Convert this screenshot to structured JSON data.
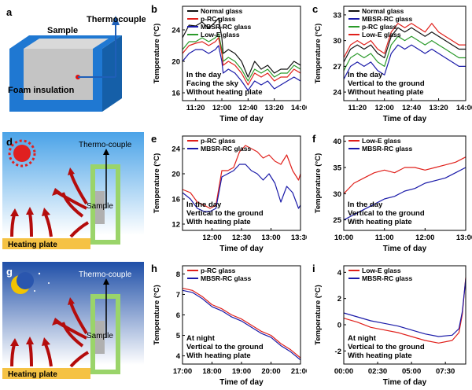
{
  "figure": {
    "panel_letters": {
      "a": "a",
      "b": "b",
      "c": "c",
      "d": "d",
      "e": "e",
      "f": "f",
      "g": "g",
      "h": "h",
      "i": "i"
    },
    "schematic_a": {
      "sample": "Sample",
      "thermocouple": "Thermocouple",
      "foam": "Foam insulation"
    },
    "schematic_d": {
      "thermo": "Thermo-couple",
      "sample": "Sample",
      "heating": "Heating plate"
    },
    "schematic_g": {
      "thermo": "Thermo-couple",
      "sample": "Sample",
      "heating": "Heating plate"
    }
  },
  "colors": {
    "normal": "#111111",
    "prc": "#e0201b",
    "mbsr": "#1a1aa8",
    "lowe": "#2a9a2a",
    "sky_top": "#4aa3e8",
    "sky_bottom": "#ffffff",
    "night_top": "#1f4fa8",
    "arrow": "#b40c0c",
    "foam": "#1f78d2",
    "plate": "#f5c244"
  },
  "chart_data": [
    {
      "id": "b",
      "type": "line",
      "xlabel": "Time of day",
      "ylabel": "Temperature (°C)",
      "xlim": [
        0,
        180
      ],
      "ylim": [
        15,
        27
      ],
      "xticks": [
        {
          "v": 20,
          "t": "11:20"
        },
        {
          "v": 60,
          "t": "12:00"
        },
        {
          "v": 100,
          "t": "12:40"
        },
        {
          "v": 140,
          "t": "13:20"
        },
        {
          "v": 180,
          "t": "14:00"
        }
      ],
      "yticks": [
        {
          "v": 16,
          "t": "16"
        },
        {
          "v": 20,
          "t": "20"
        },
        {
          "v": 24,
          "t": "24"
        }
      ],
      "legend": [
        "Normal glass",
        "p-RC glass",
        "MBSR-RC glass",
        "Low-E glass"
      ],
      "annotation": [
        "In the day",
        "Facing the sky",
        "Without heating plate"
      ],
      "series": [
        {
          "name": "Normal glass",
          "color": "normal",
          "x": [
            0,
            10,
            20,
            30,
            40,
            50,
            55,
            60,
            62,
            70,
            80,
            90,
            100,
            110,
            120,
            130,
            140,
            150,
            160,
            170,
            180
          ],
          "y": [
            23,
            24.6,
            24.5,
            25,
            24.2,
            25,
            25.5,
            23,
            21,
            21.5,
            21,
            20,
            18,
            20,
            19,
            19.5,
            18.5,
            19,
            19,
            20,
            19.5
          ]
        },
        {
          "name": "Low-E glass",
          "color": "lowe",
          "x": [
            0,
            10,
            20,
            30,
            40,
            50,
            55,
            60,
            62,
            70,
            80,
            90,
            100,
            110,
            120,
            130,
            140,
            150,
            160,
            170,
            180
          ],
          "y": [
            21.5,
            22.5,
            22.5,
            23,
            22.5,
            23,
            23.5,
            21.5,
            20,
            20.5,
            20,
            19,
            17.5,
            19,
            18.5,
            19,
            18,
            18.5,
            18.5,
            19.5,
            19
          ]
        },
        {
          "name": "p-RC glass",
          "color": "prc",
          "x": [
            0,
            10,
            20,
            30,
            40,
            50,
            55,
            60,
            62,
            70,
            80,
            90,
            100,
            110,
            120,
            130,
            140,
            150,
            160,
            170,
            180
          ],
          "y": [
            21,
            22,
            22.3,
            22.5,
            22,
            22.5,
            23,
            21,
            19.5,
            20,
            19.5,
            18.5,
            17,
            18.5,
            18,
            18.5,
            17.5,
            18,
            18,
            19,
            18.5
          ]
        },
        {
          "name": "MBSR-RC glass",
          "color": "mbsr",
          "x": [
            0,
            10,
            20,
            30,
            40,
            50,
            55,
            60,
            62,
            70,
            80,
            90,
            100,
            110,
            120,
            130,
            140,
            150,
            160,
            170,
            180
          ],
          "y": [
            20,
            21,
            21.5,
            21.5,
            21,
            21.5,
            22,
            20,
            18.5,
            19,
            18.5,
            17.5,
            16.3,
            17.5,
            17,
            17.5,
            16.5,
            17,
            17.5,
            18,
            17.5
          ]
        }
      ]
    },
    {
      "id": "c",
      "type": "line",
      "xlabel": "Time of day",
      "ylabel": "Temperature (°C)",
      "xlim": [
        0,
        180
      ],
      "ylim": [
        23,
        34
      ],
      "xticks": [
        {
          "v": 20,
          "t": "11:20"
        },
        {
          "v": 60,
          "t": "12:00"
        },
        {
          "v": 100,
          "t": "12:40"
        },
        {
          "v": 140,
          "t": "13:20"
        },
        {
          "v": 180,
          "t": "14:00"
        }
      ],
      "yticks": [
        {
          "v": 24,
          "t": "24"
        },
        {
          "v": 27,
          "t": "27"
        },
        {
          "v": 30,
          "t": "30"
        },
        {
          "v": 33,
          "t": "33"
        }
      ],
      "legend": [
        "Normal glass",
        "MBSR-RC glass",
        "p-RC glass",
        "Low-E glass"
      ],
      "annotation": [
        "In the day",
        "Vertical to the ground",
        "Without heating plate"
      ],
      "series": [
        {
          "name": "Low-E glass",
          "color": "prc",
          "x": [
            0,
            10,
            20,
            30,
            40,
            50,
            60,
            70,
            80,
            90,
            100,
            110,
            120,
            130,
            140,
            150,
            160,
            170,
            180
          ],
          "y": [
            28,
            29.5,
            30,
            29.5,
            30,
            29,
            28.5,
            31,
            32,
            31.5,
            32,
            31.5,
            31,
            32,
            31,
            30.5,
            30,
            29.5,
            29.5
          ]
        },
        {
          "name": "Normal glass",
          "color": "normal",
          "x": [
            0,
            10,
            20,
            30,
            40,
            50,
            60,
            70,
            80,
            90,
            100,
            110,
            120,
            130,
            140,
            150,
            160,
            170,
            180
          ],
          "y": [
            27.5,
            29,
            29.5,
            29,
            29.5,
            28.5,
            28,
            30.5,
            31.5,
            31,
            31.5,
            31,
            30.5,
            31,
            30.5,
            30,
            29.5,
            29,
            29
          ]
        },
        {
          "name": "p-RC glass",
          "color": "lowe",
          "x": [
            0,
            10,
            20,
            30,
            40,
            50,
            60,
            70,
            80,
            90,
            100,
            110,
            120,
            130,
            140,
            150,
            160,
            170,
            180
          ],
          "y": [
            26.5,
            28,
            28.5,
            28,
            28.5,
            27.5,
            27,
            29.5,
            30.5,
            30,
            30.5,
            30,
            29.5,
            30,
            29.5,
            29,
            28.5,
            28,
            28
          ]
        },
        {
          "name": "MBSR-RC glass",
          "color": "mbsr",
          "x": [
            0,
            10,
            20,
            30,
            40,
            50,
            60,
            70,
            80,
            90,
            100,
            110,
            120,
            130,
            140,
            150,
            160,
            170,
            180
          ],
          "y": [
            25.5,
            27,
            27.5,
            27,
            27.5,
            26.5,
            26,
            28.5,
            29.5,
            29,
            29.5,
            29,
            28.5,
            29,
            28.5,
            28,
            27.5,
            27,
            27
          ]
        }
      ]
    },
    {
      "id": "e",
      "type": "line",
      "xlabel": "Time of day",
      "ylabel": "Temperature (°C)",
      "xlim": [
        0,
        120
      ],
      "ylim": [
        11,
        26
      ],
      "xticks": [
        {
          "v": 30,
          "t": "12:00"
        },
        {
          "v": 60,
          "t": "12:30"
        },
        {
          "v": 90,
          "t": "13:00"
        },
        {
          "v": 120,
          "t": "13:30"
        }
      ],
      "yticks": [
        {
          "v": 12,
          "t": "12"
        },
        {
          "v": 16,
          "t": "16"
        },
        {
          "v": 20,
          "t": "20"
        },
        {
          "v": 24,
          "t": "24"
        }
      ],
      "legend": [
        "p-RC glass",
        "MBSR-RC glass"
      ],
      "annotation": [
        "In the day",
        "Vertical to the ground",
        "With heating plate"
      ],
      "series": [
        {
          "name": "p-RC glass",
          "color": "prc",
          "x": [
            0,
            8,
            15,
            22,
            28,
            34,
            40,
            46,
            52,
            58,
            64,
            70,
            76,
            82,
            88,
            94,
            100,
            106,
            112,
            118,
            120
          ],
          "y": [
            17.5,
            17,
            15.5,
            15,
            14.5,
            15,
            20.5,
            20.5,
            21,
            23.5,
            24.5,
            24,
            23.5,
            22.5,
            23,
            22,
            21.5,
            23,
            20.5,
            19,
            20
          ]
        },
        {
          "name": "MBSR-RC glass",
          "color": "mbsr",
          "x": [
            0,
            8,
            15,
            22,
            28,
            34,
            40,
            46,
            52,
            58,
            64,
            70,
            76,
            82,
            88,
            94,
            100,
            106,
            112,
            118,
            120
          ],
          "y": [
            17,
            16,
            14.5,
            14,
            14,
            14.5,
            19.5,
            20,
            20.5,
            21.5,
            21.5,
            20.5,
            20,
            19,
            20,
            18.5,
            15.5,
            18,
            17,
            14.5,
            15
          ]
        }
      ]
    },
    {
      "id": "f",
      "type": "line",
      "xlabel": "Time of day",
      "ylabel": "Temperature (°C)",
      "xlim": [
        0,
        180
      ],
      "ylim": [
        23,
        41
      ],
      "xticks": [
        {
          "v": 0,
          "t": "10:00"
        },
        {
          "v": 60,
          "t": "11:00"
        },
        {
          "v": 120,
          "t": "12:00"
        },
        {
          "v": 180,
          "t": "13:00"
        }
      ],
      "yticks": [
        {
          "v": 25,
          "t": "25"
        },
        {
          "v": 30,
          "t": "30"
        },
        {
          "v": 35,
          "t": "35"
        },
        {
          "v": 40,
          "t": "40"
        }
      ],
      "legend": [
        "Low-E glass",
        "MBSR-RC glass"
      ],
      "annotation": [
        "In the day",
        "Vertical to the ground",
        "With heating plate"
      ],
      "series": [
        {
          "name": "Low-E glass",
          "color": "prc",
          "x": [
            0,
            15,
            30,
            45,
            60,
            75,
            90,
            105,
            120,
            135,
            150,
            165,
            180
          ],
          "y": [
            30,
            32,
            33,
            34,
            34.5,
            34,
            35,
            35,
            34.5,
            35,
            35.5,
            36,
            37
          ]
        },
        {
          "name": "MBSR-RC glass",
          "color": "mbsr",
          "x": [
            0,
            15,
            30,
            45,
            60,
            75,
            90,
            105,
            120,
            135,
            150,
            165,
            180
          ],
          "y": [
            25,
            26,
            27,
            28,
            29,
            29.5,
            30.5,
            31,
            32,
            32.5,
            33,
            34,
            35
          ]
        }
      ]
    },
    {
      "id": "h",
      "type": "line",
      "xlabel": "Time of day",
      "ylabel": "Temperature (°C)",
      "xlim": [
        0,
        240
      ],
      "ylim": [
        3.6,
        8.4
      ],
      "xticks": [
        {
          "v": 0,
          "t": "17:00"
        },
        {
          "v": 60,
          "t": "18:00"
        },
        {
          "v": 120,
          "t": "19:00"
        },
        {
          "v": 180,
          "t": "20:00"
        },
        {
          "v": 240,
          "t": "21:00"
        }
      ],
      "yticks": [
        {
          "v": 4,
          "t": "4"
        },
        {
          "v": 5,
          "t": "5"
        },
        {
          "v": 6,
          "t": "6"
        },
        {
          "v": 7,
          "t": "7"
        },
        {
          "v": 8,
          "t": "8"
        }
      ],
      "legend": [
        "p-RC glass",
        "MBSR-RC glass"
      ],
      "annotation": [
        "At night",
        "Vertical to the ground",
        "With heating plate"
      ],
      "series": [
        {
          "name": "p-RC glass",
          "color": "prc",
          "x": [
            0,
            20,
            40,
            60,
            80,
            100,
            120,
            140,
            160,
            180,
            200,
            220,
            240
          ],
          "y": [
            7.3,
            7.2,
            6.9,
            6.5,
            6.3,
            6.0,
            5.8,
            5.5,
            5.2,
            5.0,
            4.6,
            4.3,
            3.9
          ]
        },
        {
          "name": "MBSR-RC glass",
          "color": "mbsr",
          "x": [
            0,
            20,
            40,
            60,
            80,
            100,
            120,
            140,
            160,
            180,
            200,
            220,
            240
          ],
          "y": [
            7.2,
            7.1,
            6.8,
            6.4,
            6.2,
            5.9,
            5.7,
            5.4,
            5.1,
            4.9,
            4.5,
            4.2,
            3.8
          ]
        }
      ]
    },
    {
      "id": "i",
      "type": "line",
      "xlabel": "Time of day",
      "ylabel": "Temperature (°C)",
      "xlim": [
        0,
        540
      ],
      "ylim": [
        -3,
        4.5
      ],
      "xticks": [
        {
          "v": 0,
          "t": "00:00"
        },
        {
          "v": 150,
          "t": "02:30"
        },
        {
          "v": 300,
          "t": "05:00"
        },
        {
          "v": 450,
          "t": "07:30"
        }
      ],
      "yticks": [
        {
          "v": -2,
          "t": "-2"
        },
        {
          "v": 0,
          "t": "0"
        },
        {
          "v": 2,
          "t": "2"
        },
        {
          "v": 4,
          "t": "4"
        }
      ],
      "legend": [
        "Low-E glass",
        "MBSR-RC glass"
      ],
      "annotation": [
        "At night",
        "Vertical to the ground",
        "With heating plate"
      ],
      "series": [
        {
          "name": "Low-E glass",
          "color": "prc",
          "x": [
            0,
            60,
            120,
            180,
            240,
            300,
            360,
            420,
            480,
            510,
            525,
            540
          ],
          "y": [
            0.5,
            0.2,
            -0.2,
            -0.4,
            -0.6,
            -0.9,
            -1.2,
            -1.4,
            -1.2,
            -0.6,
            0.8,
            3.6
          ]
        },
        {
          "name": "MBSR-RC glass",
          "color": "mbsr",
          "x": [
            0,
            60,
            120,
            180,
            240,
            300,
            360,
            420,
            480,
            510,
            525,
            540
          ],
          "y": [
            0.9,
            0.6,
            0.3,
            0.1,
            -0.1,
            -0.4,
            -0.7,
            -0.9,
            -0.8,
            -0.3,
            1.0,
            3.5
          ]
        }
      ]
    }
  ]
}
